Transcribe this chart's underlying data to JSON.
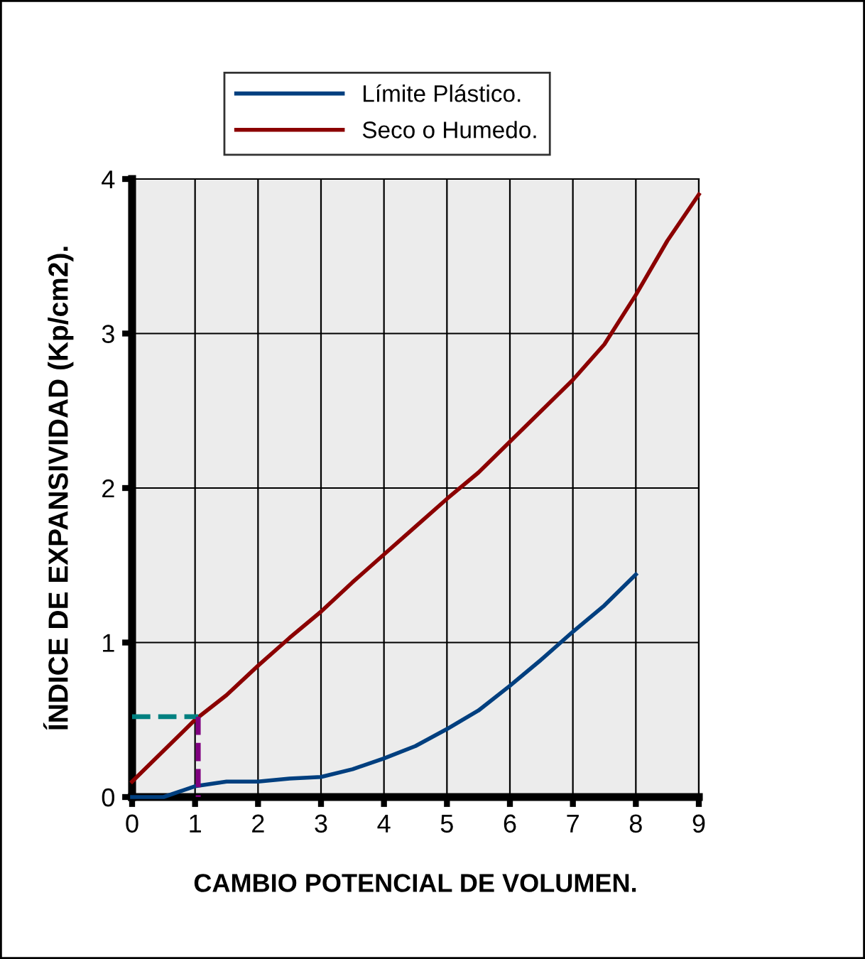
{
  "chart_data": {
    "type": "line",
    "xlabel": "CAMBIO POTENCIAL DE VOLUMEN.",
    "ylabel": "ÍNDICE DE EXPANSIVIDAD (Kp/cm2).",
    "xlim": [
      0,
      9
    ],
    "xticks": [
      0,
      1,
      2,
      3,
      4,
      5,
      6,
      7,
      8,
      9
    ],
    "ylim": [
      0,
      4
    ],
    "yticks": [
      0,
      1,
      2,
      3,
      4
    ],
    "grid": true,
    "legend": "top",
    "marker": "none",
    "series": [
      {
        "name": "Límite Plástico.",
        "color": "#003f7f",
        "x": [
          0,
          0.5,
          1,
          1.5,
          2,
          2.5,
          3,
          3.5,
          4,
          4.5,
          5,
          5.5,
          6,
          6.5,
          7,
          7.5,
          8
        ],
        "values": [
          0,
          0,
          0.07,
          0.1,
          0.1,
          0.12,
          0.13,
          0.18,
          0.25,
          0.33,
          0.44,
          0.56,
          0.72,
          0.89,
          1.07,
          1.24,
          1.44
        ]
      },
      {
        "name": "Seco o Humedo.",
        "color": "#8b0000",
        "x": [
          0,
          0.5,
          1,
          1.5,
          2,
          2.5,
          3,
          3.5,
          4,
          4.5,
          5,
          5.5,
          6,
          6.5,
          7,
          7.5,
          8,
          8.5,
          9
        ],
        "values": [
          0.1,
          0.3,
          0.5,
          0.66,
          0.85,
          1.03,
          1.2,
          1.39,
          1.57,
          1.75,
          1.93,
          2.1,
          2.3,
          2.5,
          2.7,
          2.93,
          3.25,
          3.6,
          3.9
        ]
      },
      {
        "color": "#008080",
        "line_style": "dashed",
        "x": [
          0,
          1.05
        ],
        "values": [
          0.52,
          0.52
        ]
      },
      {
        "color": "#800080",
        "line_style": "dashed",
        "x": [
          1.05,
          1.05
        ],
        "values": [
          0.52,
          0
        ]
      }
    ]
  }
}
